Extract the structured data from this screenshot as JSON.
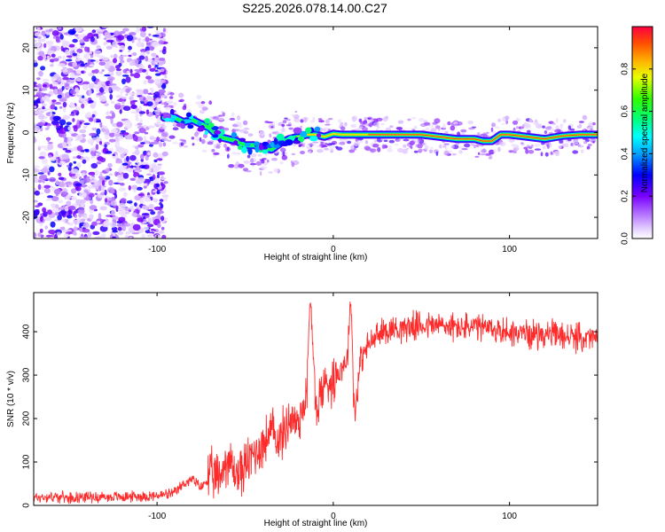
{
  "figure": {
    "title": "S225.2026.078.14.00.C27"
  },
  "chart_data": [
    {
      "type": "heatmap",
      "title": "S225.2026.078.14.00.C27",
      "xlabel": "Height of straight line (km)",
      "ylabel": "Frequency (Hz)",
      "xlim": [
        -170,
        150
      ],
      "ylim": [
        -25,
        25
      ],
      "xticks": [
        -100,
        0,
        100
      ],
      "yticks": [
        -20,
        -10,
        0,
        10,
        20
      ],
      "ridge": {
        "description": "dominant frequency trace",
        "x": [
          -95,
          -90,
          -85,
          -80,
          -75,
          -70,
          -65,
          -60,
          -55,
          -50,
          -45,
          -40,
          -35,
          -30,
          -25,
          -20,
          -15,
          -10,
          -5,
          0,
          5,
          10,
          15,
          20,
          30,
          40,
          50,
          60,
          70,
          80,
          85,
          90,
          95,
          100,
          110,
          120,
          130,
          140,
          148
        ],
        "y": [
          3.5,
          3.5,
          2.5,
          3,
          2,
          1,
          -1,
          -1.5,
          -2,
          -3,
          -3,
          -3.5,
          -4,
          -2.5,
          -1.5,
          -1,
          -0.5,
          -0.5,
          -1,
          -0.3,
          -0.5,
          -0.5,
          -0.5,
          -0.5,
          -0.5,
          -0.5,
          -0.5,
          -1,
          -1.5,
          -1.5,
          -2,
          -2,
          -0.5,
          -0.5,
          -1,
          -1.5,
          -0.8,
          -0.5,
          -0.5
        ]
      },
      "colorbar": {
        "label": "Normalized spectral amplitude",
        "range": [
          0,
          1
        ],
        "ticks": [
          "0.0",
          "0.2",
          "0.4",
          "0.6",
          "0.8"
        ]
      }
    },
    {
      "type": "line",
      "xlabel": "Height of straight line (km)",
      "ylabel": "SNR (10 * v/v)",
      "xlim": [
        -170,
        150
      ],
      "ylim": [
        0,
        490
      ],
      "xticks": [
        -100,
        0,
        100
      ],
      "yticks": [
        0,
        100,
        200,
        300,
        400
      ],
      "series": [
        {
          "name": "SNR",
          "color": "#ff2a2a",
          "x": [
            -170,
            -160,
            -150,
            -140,
            -130,
            -120,
            -110,
            -100,
            -95,
            -90,
            -85,
            -80,
            -75,
            -70,
            -65,
            -60,
            -55,
            -50,
            -45,
            -40,
            -35,
            -30,
            -25,
            -20,
            -15,
            -13,
            -10,
            -5,
            0,
            5,
            8,
            10,
            12,
            15,
            20,
            25,
            30,
            40,
            50,
            60,
            70,
            80,
            90,
            100,
            110,
            120,
            130,
            140,
            150
          ],
          "y": [
            18,
            20,
            18,
            20,
            19,
            20,
            21,
            22,
            25,
            28,
            50,
            60,
            40,
            70,
            60,
            110,
            70,
            90,
            120,
            140,
            170,
            150,
            200,
            190,
            260,
            490,
            220,
            280,
            290,
            320,
            340,
            490,
            200,
            330,
            370,
            390,
            405,
            410,
            415,
            415,
            410,
            410,
            405,
            400,
            395,
            395,
            390,
            385,
            385
          ]
        }
      ],
      "noise_amplitude": 30
    }
  ]
}
